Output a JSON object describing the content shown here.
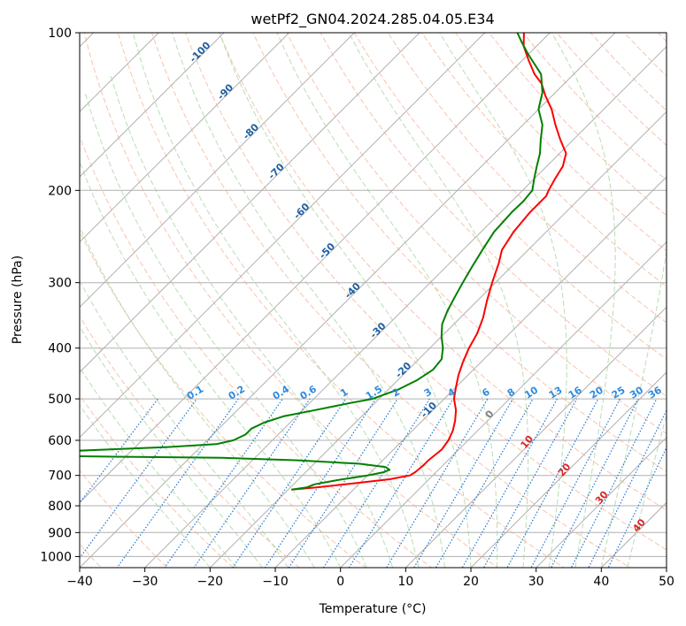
{
  "chart_data": {
    "type": "line",
    "title": "wetPf2_GN04.2024.285.04.05.E34",
    "xlabel": "Temperature (°C)",
    "ylabel": "Pressure (hPa)",
    "xlim": [
      -40,
      50
    ],
    "ylim": [
      1050,
      100
    ],
    "y_scale": "log",
    "grid": true,
    "x_ticks": [
      -40,
      -30,
      -20,
      -10,
      0,
      10,
      20,
      30,
      40,
      50
    ],
    "x_tick_labels": [
      "−40",
      "−30",
      "−20",
      "−10",
      "0",
      "10",
      "20",
      "30",
      "40",
      "50"
    ],
    "y_ticks": [
      100,
      200,
      300,
      400,
      500,
      600,
      700,
      800,
      900,
      1000
    ],
    "y_tick_labels": [
      "100",
      "200",
      "300",
      "400",
      "500",
      "600",
      "700",
      "800",
      "900",
      "1000"
    ],
    "skew_label": "skew-T log-p",
    "series": [
      {
        "kind": "temperature",
        "color": "#ff0000",
        "points": [
          [
            -19.5,
            745
          ],
          [
            -16,
            738
          ],
          [
            -11,
            725
          ],
          [
            -6,
            712
          ],
          [
            -3.5,
            700
          ],
          [
            -3.2,
            690
          ],
          [
            -3.0,
            670
          ],
          [
            -3.0,
            655
          ],
          [
            -2.8,
            640
          ],
          [
            -2.6,
            625
          ],
          [
            -3.0,
            600
          ],
          [
            -3.8,
            575
          ],
          [
            -5.0,
            550
          ],
          [
            -6.5,
            525
          ],
          [
            -8.5,
            500
          ],
          [
            -10,
            475
          ],
          [
            -11.5,
            450
          ],
          [
            -12.8,
            425
          ],
          [
            -14,
            400
          ],
          [
            -15,
            375
          ],
          [
            -16.5,
            350
          ],
          [
            -18.5,
            325
          ],
          [
            -20.5,
            300
          ],
          [
            -22.5,
            275
          ],
          [
            -24,
            260
          ],
          [
            -25,
            240
          ],
          [
            -25.5,
            220
          ],
          [
            -25.5,
            205
          ],
          [
            -26,
            200
          ],
          [
            -26.8,
            190
          ],
          [
            -27.5,
            180
          ],
          [
            -29,
            170
          ],
          [
            -32,
            160
          ],
          [
            -35,
            150
          ],
          [
            -38,
            140
          ],
          [
            -41,
            132
          ],
          [
            -43.5,
            125
          ],
          [
            -46,
            120
          ],
          [
            -49,
            113
          ],
          [
            -52,
            106
          ],
          [
            -54,
            100
          ]
        ]
      },
      {
        "kind": "dewpoint",
        "color": "#008000",
        "points": [
          [
            -19.5,
            745
          ],
          [
            -17.5,
            738
          ],
          [
            -16.8,
            728
          ],
          [
            -14,
            715
          ],
          [
            -10,
            700
          ],
          [
            -8,
            690
          ],
          [
            -7.5,
            683
          ],
          [
            -8.5,
            675
          ],
          [
            -13,
            665
          ],
          [
            -23,
            655
          ],
          [
            -35,
            648
          ],
          [
            -50,
            645
          ],
          [
            -60,
            643
          ],
          [
            -58,
            628
          ],
          [
            -45,
            618
          ],
          [
            -38,
            610
          ],
          [
            -36,
            600
          ],
          [
            -35,
            585
          ],
          [
            -35,
            570
          ],
          [
            -34,
            555
          ],
          [
            -32,
            540
          ],
          [
            -28,
            525
          ],
          [
            -24,
            510
          ],
          [
            -21,
            500
          ],
          [
            -18.5,
            480
          ],
          [
            -17,
            460
          ],
          [
            -16.2,
            440
          ],
          [
            -16.5,
            420
          ],
          [
            -18,
            400
          ],
          [
            -20,
            380
          ],
          [
            -21.8,
            360
          ],
          [
            -23,
            340
          ],
          [
            -24,
            320
          ],
          [
            -25,
            300
          ],
          [
            -26,
            280
          ],
          [
            -27,
            260
          ],
          [
            -28,
            240
          ],
          [
            -28.3,
            220
          ],
          [
            -28.2,
            210
          ],
          [
            -28.5,
            200
          ],
          [
            -30,
            190
          ],
          [
            -31.5,
            180
          ],
          [
            -33,
            170
          ],
          [
            -35,
            160
          ],
          [
            -37,
            150
          ],
          [
            -40,
            140
          ],
          [
            -42,
            130
          ],
          [
            -45,
            120
          ],
          [
            -50,
            110
          ],
          [
            -53,
            104
          ],
          [
            -55,
            100
          ]
        ]
      }
    ],
    "dry_adiabat_labels": [
      "-100",
      "-90",
      "-80",
      "-70",
      "-60",
      "-50",
      "-40",
      "-30",
      "-20",
      "-10"
    ],
    "moist_adiabat_labels": [
      "0",
      "10",
      "20",
      "30",
      "40"
    ],
    "mixing_ratio_labels": [
      "0.1",
      "0.2",
      "0.4",
      "0.6",
      "1",
      "1.5",
      "2",
      "3",
      "4",
      "6",
      "8",
      "10",
      "13",
      "16",
      "20",
      "25",
      "30",
      "36"
    ],
    "colors": {
      "temperature": "#ff0000",
      "dewpoint": "#008000",
      "isotherm_grid": "#b0b0b0",
      "dry_adiabat": "#f4a582",
      "moist_adiabat": "#a6d5a0",
      "mixing_ratio": "#1f77d4",
      "dry_label": "#1f5fa0",
      "moist_label": "#d62728",
      "mixing_label": "#2e8be0",
      "lcl_label": "#808080"
    }
  }
}
